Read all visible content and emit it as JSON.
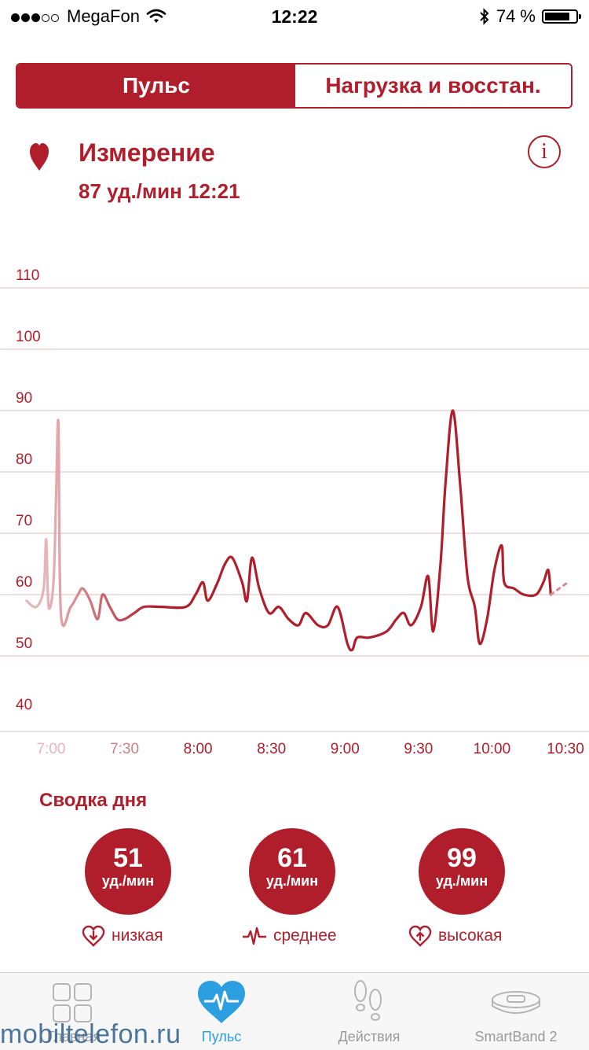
{
  "status_bar": {
    "carrier": "MegaFon",
    "time": "12:22",
    "battery_text": "74 %",
    "battery_level": 0.74
  },
  "tabs_top": {
    "active": "Пульс",
    "inactive": "Нагрузка и восстан."
  },
  "header": {
    "title": "Измерение",
    "subtitle": "87 уд./мин 12:21"
  },
  "chart_data": {
    "type": "line",
    "ylim": [
      40,
      115
    ],
    "y_ticks": [
      "40",
      "50",
      "60",
      "70",
      "80",
      "90",
      "100",
      "110"
    ],
    "x_ticks": [
      "7:00",
      "7:30",
      "8:00",
      "8:30",
      "9:00",
      "9:30",
      "10:00",
      "10:30"
    ],
    "color": "#b01e2c",
    "faded_color": "#e7b5b9",
    "grid": true,
    "series": [
      {
        "points": [
          [
            "6:50",
            59
          ],
          [
            "6:54",
            58
          ],
          [
            "6:57",
            61
          ],
          [
            "6:58",
            69
          ],
          [
            "6:59",
            58
          ],
          [
            "7:01",
            62
          ],
          [
            "7:02",
            75
          ],
          [
            "7:03",
            88
          ],
          [
            "7:04",
            57
          ],
          [
            "7:08",
            58
          ],
          [
            "7:11",
            60
          ],
          [
            "7:13",
            61
          ],
          [
            "7:16",
            59
          ],
          [
            "7:19",
            56
          ],
          [
            "7:21",
            60
          ],
          [
            "7:24",
            58
          ],
          [
            "7:27",
            56
          ],
          [
            "7:30",
            56
          ],
          [
            "7:34",
            57
          ],
          [
            "7:38",
            58
          ],
          [
            "7:45",
            58
          ],
          [
            "7:55",
            58
          ],
          [
            "7:59",
            60
          ],
          [
            "8:02",
            62
          ],
          [
            "8:04",
            59
          ],
          [
            "8:08",
            62
          ],
          [
            "8:11",
            65
          ],
          [
            "8:14",
            66
          ],
          [
            "8:18",
            62
          ],
          [
            "8:20",
            59
          ],
          [
            "8:22",
            66
          ],
          [
            "8:25",
            61
          ],
          [
            "8:29",
            57
          ],
          [
            "8:33",
            58
          ],
          [
            "8:37",
            56
          ],
          [
            "8:41",
            55
          ],
          [
            "8:44",
            57
          ],
          [
            "8:49",
            55
          ],
          [
            "8:53",
            55
          ],
          [
            "8:57",
            58
          ],
          [
            "9:01",
            52
          ],
          [
            "9:03",
            51
          ],
          [
            "9:05",
            53
          ],
          [
            "9:10",
            53
          ],
          [
            "9:17",
            54
          ],
          [
            "9:21",
            56
          ],
          [
            "9:24",
            57
          ],
          [
            "9:27",
            55
          ],
          [
            "9:31",
            58
          ],
          [
            "9:34",
            63
          ],
          [
            "9:36",
            54
          ],
          [
            "9:39",
            65
          ],
          [
            "9:41",
            78
          ],
          [
            "9:44",
            90
          ],
          [
            "9:47",
            78
          ],
          [
            "9:50",
            63
          ],
          [
            "9:53",
            58
          ],
          [
            "9:55",
            52
          ],
          [
            "9:58",
            56
          ],
          [
            "10:01",
            64
          ],
          [
            "10:04",
            68
          ],
          [
            "10:05",
            62
          ],
          [
            "10:09",
            61
          ],
          [
            "10:13",
            60
          ],
          [
            "10:18",
            60
          ],
          [
            "10:21",
            62
          ],
          [
            "10:23",
            64
          ],
          [
            "10:24",
            60
          ],
          [
            "10:31",
            62
          ]
        ]
      }
    ]
  },
  "summary": {
    "title": "Сводка дня",
    "unit": "уд./мин",
    "items": [
      {
        "value": "51",
        "label": "низкая"
      },
      {
        "value": "61",
        "label": "среднее"
      },
      {
        "value": "99",
        "label": "высокая"
      }
    ]
  },
  "tabbar": {
    "items": [
      {
        "label": "Главная",
        "icon": "grid-icon"
      },
      {
        "label": "Пульс",
        "icon": "heart-pulse-icon"
      },
      {
        "label": "Действия",
        "icon": "footsteps-icon"
      },
      {
        "label": "SmartBand 2",
        "icon": "band-icon"
      }
    ]
  },
  "watermark": "mobiltelefon.ru"
}
